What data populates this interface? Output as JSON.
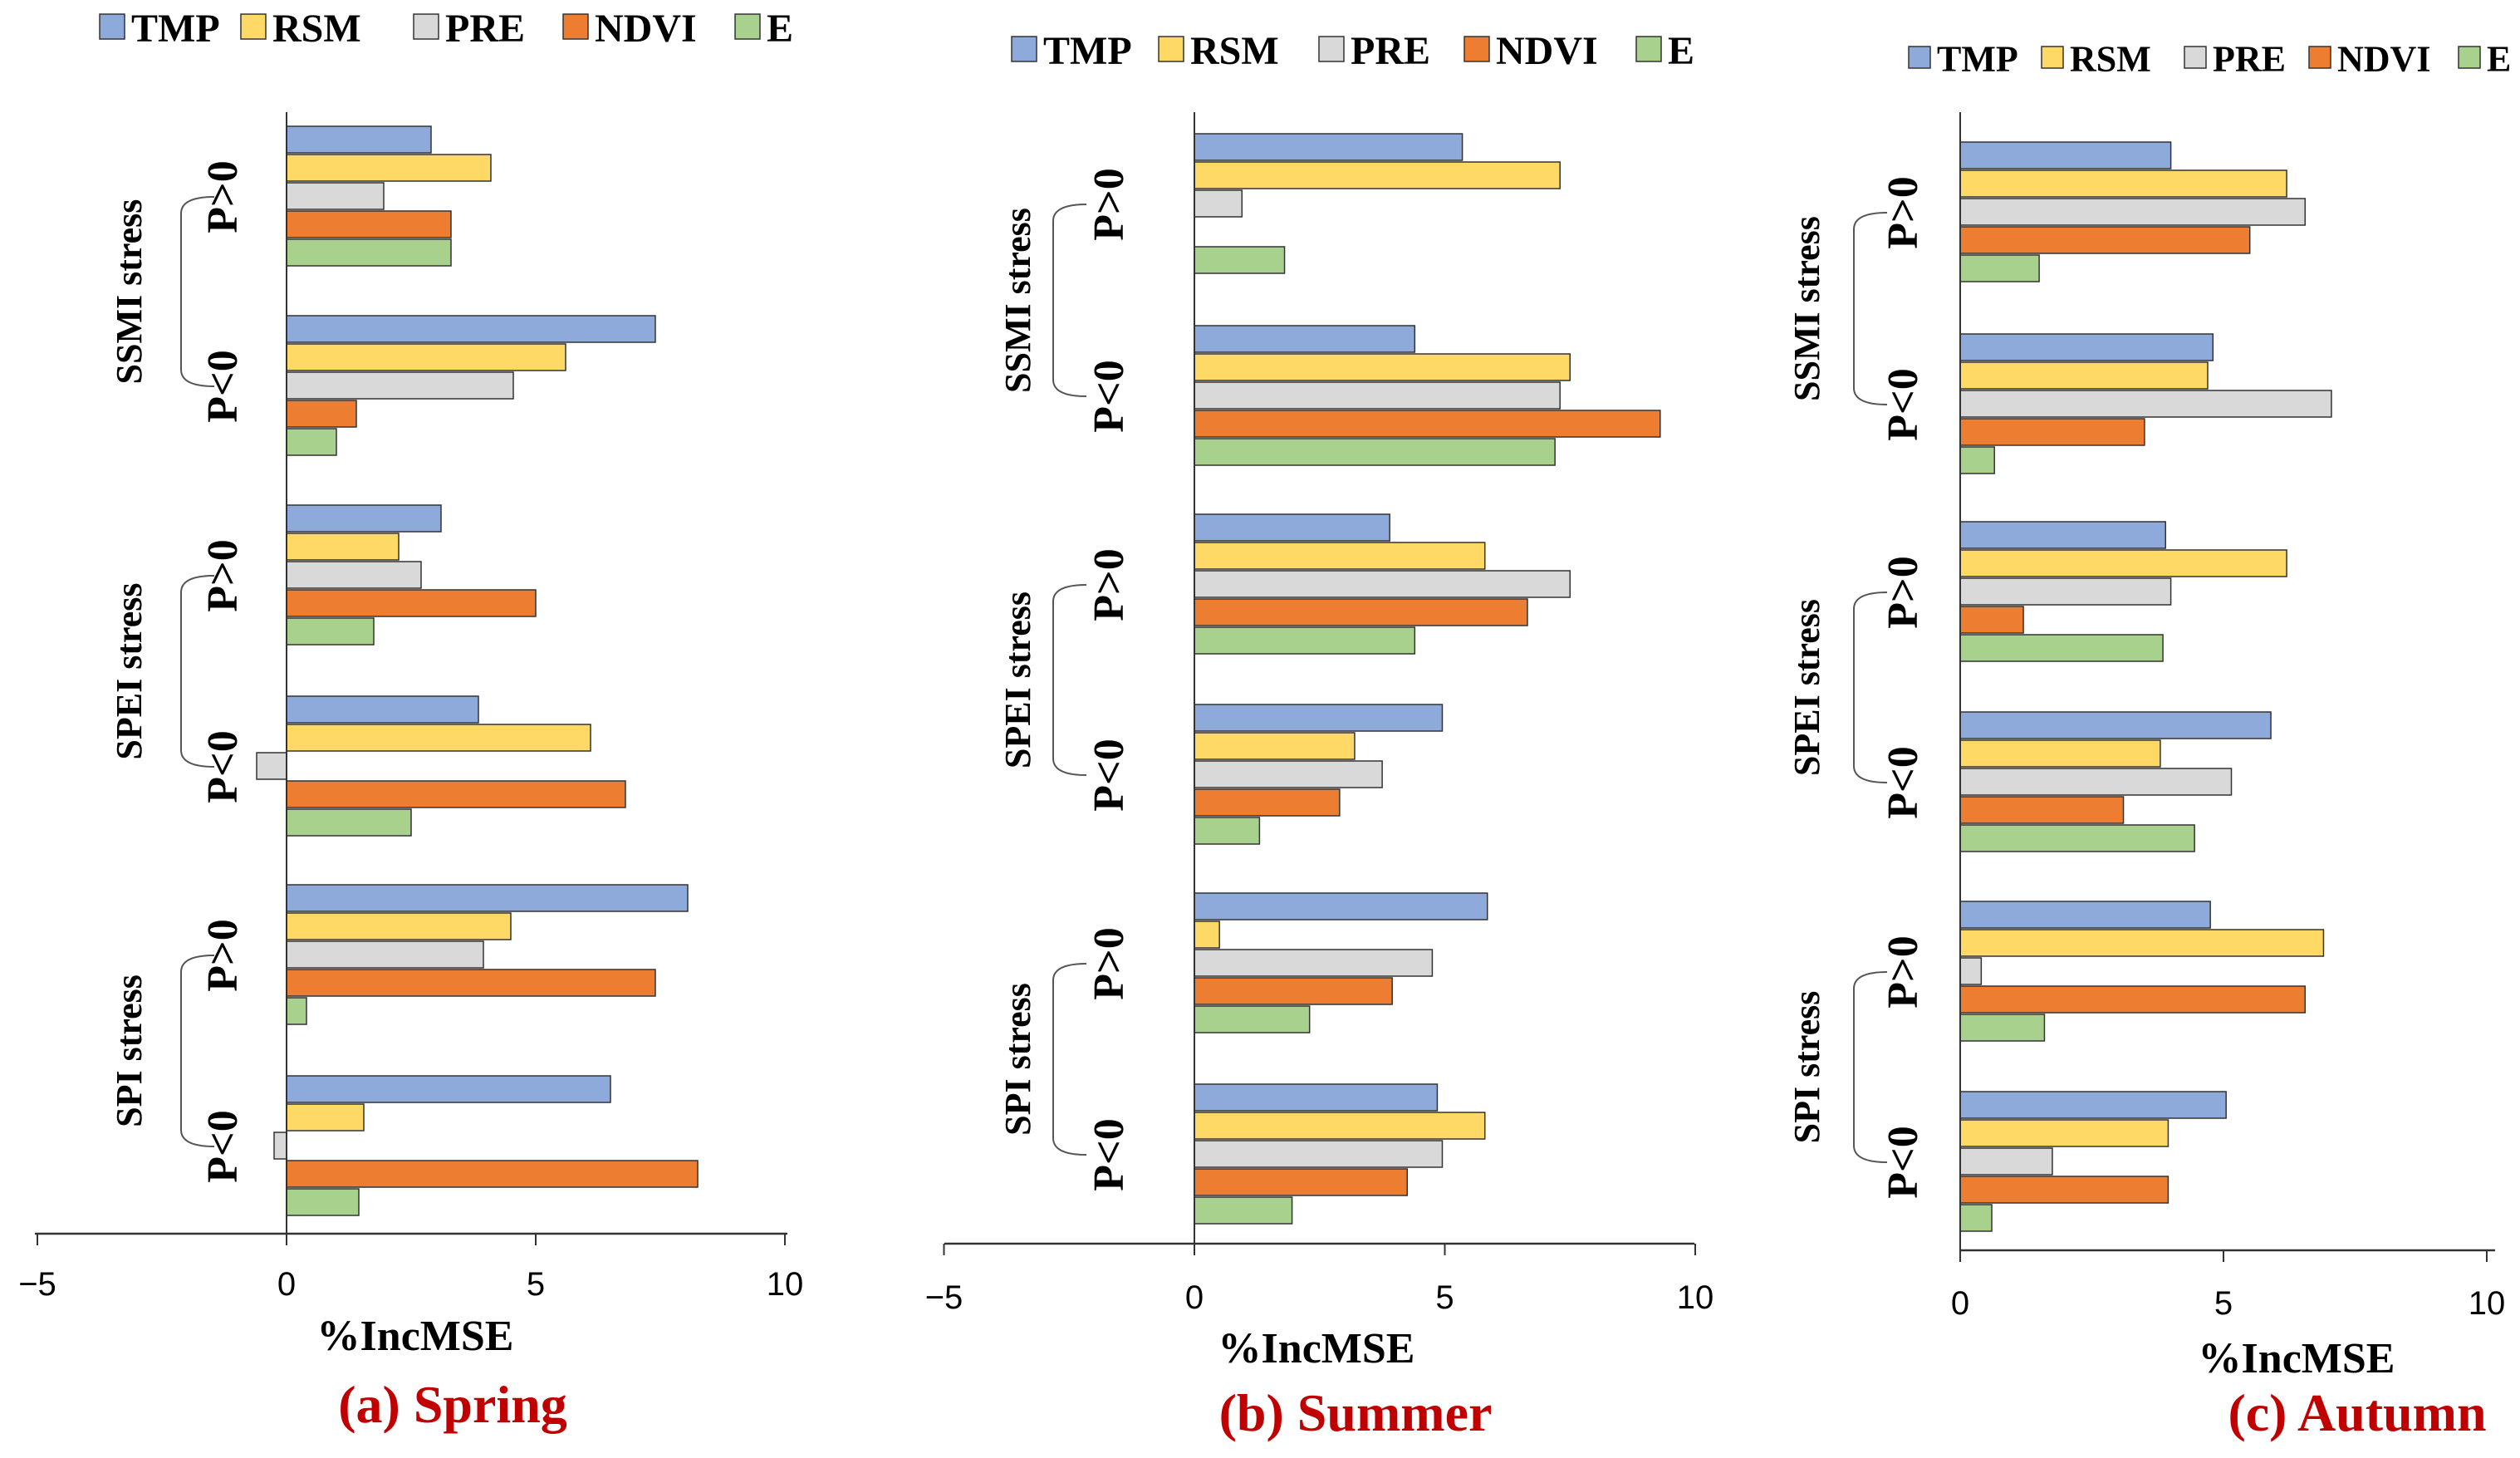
{
  "series_colors": {
    "TMP": "#8eaadb",
    "RSM": "#ffd966",
    "PRE": "#d9d9d9",
    "NDVI": "#ed7d31",
    "E": "#a9d18e"
  },
  "chart_data": [
    {
      "type": "bar",
      "orientation": "horizontal",
      "panel": "a",
      "caption": "(a) Spring",
      "xlabel": "%IncMSE",
      "xlim": [
        -5,
        10
      ],
      "xticks": [
        -5,
        0,
        5,
        10
      ],
      "xtick_labels": [
        "−5",
        "0",
        "5",
        "10"
      ],
      "legend": [
        "TMP",
        "RSM",
        "PRE",
        "NDVI",
        "E"
      ],
      "groups": [
        {
          "label": "SSMI stress",
          "subgroups": [
            {
              "label": "P>0",
              "values": {
                "TMP": 2.9,
                "RSM": 4.1,
                "PRE": 1.95,
                "NDVI": 3.3,
                "E": 3.3
              }
            },
            {
              "label": "P<0",
              "values": {
                "TMP": 7.4,
                "RSM": 5.6,
                "PRE": 4.55,
                "NDVI": 1.4,
                "E": 1.0
              }
            }
          ]
        },
        {
          "label": "SPEI stress",
          "subgroups": [
            {
              "label": "P>0",
              "values": {
                "TMP": 3.1,
                "RSM": 2.25,
                "PRE": 2.7,
                "NDVI": 5.0,
                "E": 1.75
              }
            },
            {
              "label": "P<0",
              "values": {
                "TMP": 3.85,
                "RSM": 6.1,
                "PRE": -0.6,
                "NDVI": 6.8,
                "E": 2.5
              }
            }
          ]
        },
        {
          "label": "SPI stress",
          "subgroups": [
            {
              "label": "P>0",
              "values": {
                "TMP": 8.05,
                "RSM": 4.5,
                "PRE": 3.95,
                "NDVI": 7.4,
                "E": 0.4
              }
            },
            {
              "label": "P<0",
              "values": {
                "TMP": 6.5,
                "RSM": 1.55,
                "PRE": -0.25,
                "NDVI": 8.25,
                "E": 1.45
              }
            }
          ]
        }
      ]
    },
    {
      "type": "bar",
      "orientation": "horizontal",
      "panel": "b",
      "caption": "(b) Summer",
      "xlabel": "%IncMSE",
      "xlim": [
        -5,
        10
      ],
      "xticks": [
        -5,
        0,
        5,
        10
      ],
      "xtick_labels": [
        "−5",
        "0",
        "5",
        "10"
      ],
      "legend": [
        "TMP",
        "RSM",
        "PRE",
        "NDVI",
        "E"
      ],
      "groups": [
        {
          "label": "SSMI stress",
          "subgroups": [
            {
              "label": "P>0",
              "values": {
                "TMP": 5.35,
                "RSM": 7.3,
                "PRE": 0.95,
                "NDVI": 0.0,
                "E": 1.8
              }
            },
            {
              "label": "P<0",
              "values": {
                "TMP": 4.4,
                "RSM": 7.5,
                "PRE": 7.3,
                "NDVI": 9.3,
                "E": 7.2
              }
            }
          ]
        },
        {
          "label": "SPEI stress",
          "subgroups": [
            {
              "label": "P>0",
              "values": {
                "TMP": 3.9,
                "RSM": 5.8,
                "PRE": 7.5,
                "NDVI": 6.65,
                "E": 4.4
              }
            },
            {
              "label": "P<0",
              "values": {
                "TMP": 4.95,
                "RSM": 3.2,
                "PRE": 3.75,
                "NDVI": 2.9,
                "E": 1.3
              }
            }
          ]
        },
        {
          "label": "SPI stress",
          "subgroups": [
            {
              "label": "P>0",
              "values": {
                "TMP": 5.85,
                "RSM": 0.5,
                "PRE": 4.75,
                "NDVI": 3.95,
                "E": 2.3
              }
            },
            {
              "label": "P<0",
              "values": {
                "TMP": 4.85,
                "RSM": 5.8,
                "PRE": 4.95,
                "NDVI": 4.25,
                "E": 1.95
              }
            }
          ]
        }
      ]
    },
    {
      "type": "bar",
      "orientation": "horizontal",
      "panel": "c",
      "caption": "(c) Autumn",
      "xlabel": "%IncMSE",
      "xlim": [
        0,
        10
      ],
      "xticks": [
        0,
        5,
        10
      ],
      "xtick_labels": [
        "0",
        "5",
        "10"
      ],
      "legend": [
        "TMP",
        "RSM",
        "PRE",
        "NDVI",
        "E"
      ],
      "groups": [
        {
          "label": "SSMI stress",
          "subgroups": [
            {
              "label": "P>0",
              "values": {
                "TMP": 4.0,
                "RSM": 6.2,
                "PRE": 6.55,
                "NDVI": 5.5,
                "E": 1.5
              }
            },
            {
              "label": "P<0",
              "values": {
                "TMP": 4.8,
                "RSM": 4.7,
                "PRE": 7.05,
                "NDVI": 3.5,
                "E": 0.65
              }
            }
          ]
        },
        {
          "label": "SPEI stress",
          "subgroups": [
            {
              "label": "P>0",
              "values": {
                "TMP": 3.9,
                "RSM": 6.2,
                "PRE": 4.0,
                "NDVI": 1.2,
                "E": 3.85
              }
            },
            {
              "label": "P<0",
              "values": {
                "TMP": 5.9,
                "RSM": 3.8,
                "PRE": 5.15,
                "NDVI": 3.1,
                "E": 4.45
              }
            }
          ]
        },
        {
          "label": "SPI stress",
          "subgroups": [
            {
              "label": "P>0",
              "values": {
                "TMP": 4.75,
                "RSM": 6.9,
                "PRE": 0.4,
                "NDVI": 6.55,
                "E": 1.6
              }
            },
            {
              "label": "P<0",
              "values": {
                "TMP": 5.05,
                "RSM": 3.95,
                "PRE": 1.75,
                "NDVI": 3.95,
                "E": 0.6
              }
            }
          ]
        }
      ]
    }
  ]
}
